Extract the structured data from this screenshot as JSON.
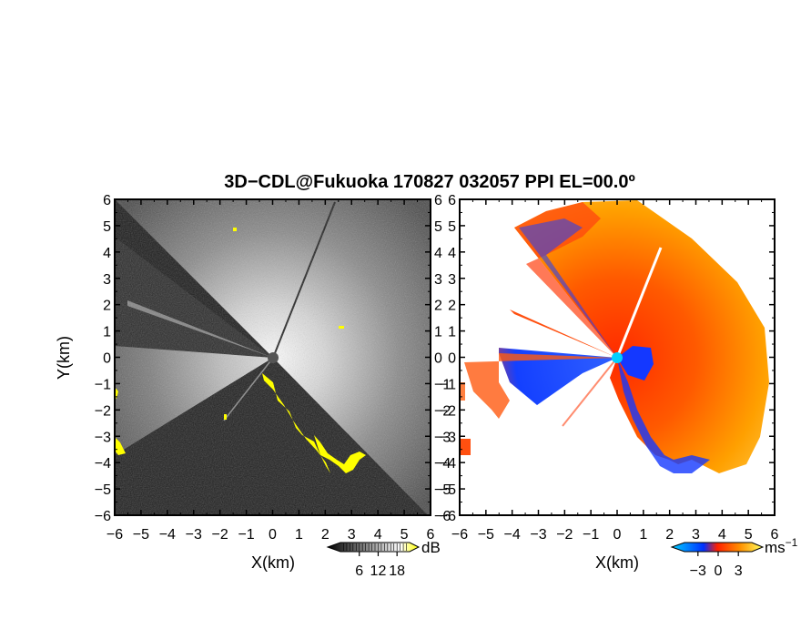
{
  "chart_data": [
    {
      "type": "heatmap",
      "panel": "left",
      "quantity": "backscatter intensity",
      "title": "3D−CDL@Fukuoka 170827 032057 PPI EL=00.0º",
      "xlabel": "X(km)",
      "ylabel": "Y(km)",
      "xlim": [
        -6,
        6
      ],
      "ylim": [
        -6,
        6
      ],
      "xticks": [
        "−6",
        "−5",
        "−4",
        "−3",
        "−2",
        "−1",
        "0",
        "1",
        "2",
        "3",
        "4",
        "5",
        "6"
      ],
      "yticks": [
        "6",
        "5",
        "4",
        "3",
        "2",
        "1",
        "0",
        "−1",
        "−2",
        "−3",
        "−4",
        "−5",
        "−6"
      ],
      "colorbar": {
        "unit": "dB",
        "ticks": [
          "6",
          "12",
          "18"
        ],
        "tick_values": [
          6,
          12,
          18
        ],
        "range": [
          0,
          22
        ],
        "colors": [
          "#000000",
          "#ffffff",
          "#ffff00"
        ]
      }
    },
    {
      "type": "heatmap",
      "panel": "right",
      "quantity": "radial velocity",
      "xlabel": "X(km)",
      "xlim": [
        -6,
        6
      ],
      "ylim": [
        -6,
        6
      ],
      "xticks": [
        "−6",
        "−5",
        "−4",
        "−3",
        "−2",
        "−1",
        "0",
        "1",
        "2",
        "3",
        "4",
        "5",
        "6"
      ],
      "yticks": [
        "6",
        "5",
        "4",
        "3",
        "2",
        "1",
        "0",
        "−1",
        "−2",
        "−3",
        "−4",
        "−5",
        "−6"
      ],
      "colorbar": {
        "unit": "ms",
        "unit_exponent": "−1",
        "ticks": [
          "−3",
          "0",
          "3"
        ],
        "tick_values": [
          -3,
          0,
          3
        ],
        "range": [
          -5,
          5
        ],
        "colors": [
          "#00c8ff",
          "#0030ff",
          "#ff2000",
          "#ff9000",
          "#ffff60"
        ]
      }
    }
  ]
}
